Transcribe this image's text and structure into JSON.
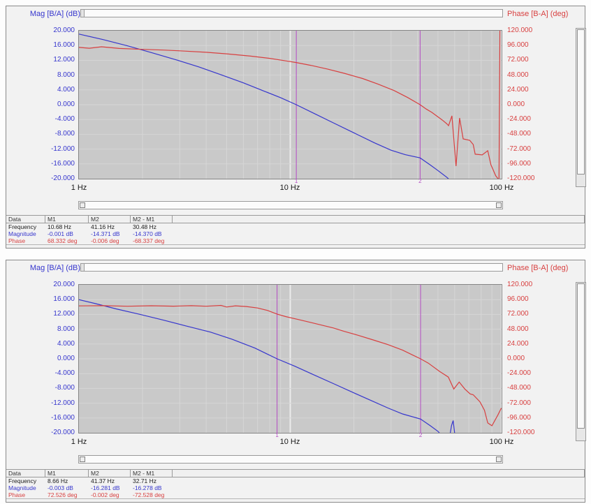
{
  "colors": {
    "mag": "#3636cd",
    "phase": "#d84040",
    "marker": "#b44ac4",
    "grid_minor": "#d6d6d6",
    "grid_major": "#ececec",
    "plot_bg": "#c9c9c9",
    "text": "#1a1a1a"
  },
  "panels": [
    {
      "mag_title": "Mag [B/A] (dB)",
      "phase_title": "Phase [B-A] (deg)",
      "left_ticks": [
        "20.000",
        "16.000",
        "12.000",
        "8.000",
        "4.000",
        "0.000",
        "-4.000",
        "-8.000",
        "-12.000",
        "-16.000",
        "-20.000"
      ],
      "right_ticks": [
        "120.000",
        "96.000",
        "72.000",
        "48.000",
        "24.000",
        "0.000",
        "-24.000",
        "-48.000",
        "-72.000",
        "-96.000",
        "-120.000"
      ],
      "x_ticks": [
        "1 Hz",
        "10 Hz",
        "100 Hz"
      ],
      "markers": [
        {
          "label": "1",
          "f": 10.68
        },
        {
          "label": "2",
          "f": 41.16
        }
      ],
      "table": {
        "headers": [
          "Data",
          "M1",
          "M2",
          "M2 - M1"
        ],
        "rows": [
          {
            "label": "Frequency",
            "color": "text",
            "values": [
              "10.68 Hz",
              "41.16 Hz",
              "30.48 Hz"
            ]
          },
          {
            "label": "Magnitude",
            "color": "mag",
            "values": [
              "-0.001 dB",
              "-14.371 dB",
              "-14.370 dB"
            ]
          },
          {
            "label": "Phase",
            "color": "phase",
            "values": [
              "68.332 deg",
              "-0.006 deg",
              "-68.337 deg"
            ]
          }
        ]
      }
    },
    {
      "mag_title": "Mag [B/A] (dB)",
      "phase_title": "Phase [B-A] (deg)",
      "left_ticks": [
        "20.000",
        "16.000",
        "12.000",
        "8.000",
        "4.000",
        "0.000",
        "-4.000",
        "-8.000",
        "-12.000",
        "-16.000",
        "-20.000"
      ],
      "right_ticks": [
        "120.000",
        "96.000",
        "72.000",
        "48.000",
        "24.000",
        "0.000",
        "-24.000",
        "-48.000",
        "-72.000",
        "-96.000",
        "-120.000"
      ],
      "x_ticks": [
        "1 Hz",
        "10 Hz",
        "100 Hz"
      ],
      "markers": [
        {
          "label": "1",
          "f": 8.66
        },
        {
          "label": "2",
          "f": 41.37
        }
      ],
      "table": {
        "headers": [
          "Data",
          "M1",
          "M2",
          "M2 - M1"
        ],
        "rows": [
          {
            "label": "Frequency",
            "color": "text",
            "values": [
              "8.66 Hz",
              "41.37 Hz",
              "32.71 Hz"
            ]
          },
          {
            "label": "Magnitude",
            "color": "mag",
            "values": [
              "-0.003 dB",
              "-16.281 dB",
              "-16.278 dB"
            ]
          },
          {
            "label": "Phase",
            "color": "phase",
            "values": [
              "72.526 deg",
              "-0.002 deg",
              "-72.528 deg"
            ]
          }
        ]
      }
    }
  ],
  "chart_data": [
    {
      "type": "line",
      "title": "Bode plot 1",
      "x_scale": "log",
      "x_range_hz": [
        1,
        100
      ],
      "mag_axis": {
        "label": "Mag [B/A] (dB)",
        "range": [
          -20,
          20
        ],
        "step": 4
      },
      "phase_axis": {
        "label": "Phase [B-A] (deg)",
        "range": [
          -120,
          120
        ],
        "step": 24
      },
      "grid": true,
      "markers_hz": [
        10.68,
        41.16
      ],
      "series": [
        {
          "name": "Magnitude",
          "axis": "mag",
          "points": [
            [
              1,
              19.1
            ],
            [
              1.3,
              17.6
            ],
            [
              1.7,
              15.9
            ],
            [
              2.2,
              14.1
            ],
            [
              2.9,
              12.1
            ],
            [
              3.7,
              10.2
            ],
            [
              4.7,
              8.1
            ],
            [
              6,
              5.9
            ],
            [
              7.5,
              3.7
            ],
            [
              9,
              1.9
            ],
            [
              10.68,
              0
            ],
            [
              13,
              -2.4
            ],
            [
              16,
              -4.9
            ],
            [
              20,
              -7.6
            ],
            [
              25,
              -10.3
            ],
            [
              30,
              -12.3
            ],
            [
              35,
              -13.5
            ],
            [
              41.16,
              -14.37
            ],
            [
              46,
              -16.3
            ],
            [
              50,
              -17.8
            ],
            [
              55,
              -19.6
            ],
            [
              59,
              -21.2
            ]
          ]
        },
        {
          "name": "Phase",
          "axis": "phase",
          "points": [
            [
              1,
              93
            ],
            [
              1.12,
              91.6
            ],
            [
              1.28,
              94
            ],
            [
              1.55,
              91.2
            ],
            [
              2,
              89.8
            ],
            [
              2.5,
              88.6
            ],
            [
              3,
              87.4
            ],
            [
              4,
              85
            ],
            [
              5,
              82.5
            ],
            [
              6.5,
              78.8
            ],
            [
              8,
              75.2
            ],
            [
              9.3,
              71.7
            ],
            [
              10.68,
              68.33
            ],
            [
              12.5,
              63.8
            ],
            [
              15,
              57.8
            ],
            [
              18,
              51
            ],
            [
              22,
              42.5
            ],
            [
              26,
              33.5
            ],
            [
              31,
              23
            ],
            [
              36,
              11.5
            ],
            [
              41.16,
              0
            ],
            [
              44,
              -7
            ],
            [
              46.8,
              -12.5
            ],
            [
              52.5,
              -25
            ],
            [
              54.9,
              -30.6
            ],
            [
              56.1,
              -34
            ],
            [
              58.2,
              -18
            ],
            [
              60.9,
              -99.6
            ],
            [
              63.3,
              -21.5
            ],
            [
              65.8,
              -55.5
            ],
            [
              70.7,
              -57.7
            ],
            [
              73.4,
              -64.5
            ],
            [
              75,
              -80.3
            ],
            [
              81,
              -81.4
            ],
            [
              86,
              -74.6
            ],
            [
              89,
              -97.2
            ],
            [
              93.8,
              -115.3
            ],
            [
              97.2,
              -122
            ],
            [
              98.2,
              122
            ]
          ]
        }
      ]
    },
    {
      "type": "line",
      "title": "Bode plot 2",
      "x_scale": "log",
      "x_range_hz": [
        1,
        100
      ],
      "mag_axis": {
        "label": "Mag [B/A] (dB)",
        "range": [
          -20,
          20
        ],
        "step": 4
      },
      "phase_axis": {
        "label": "Phase [B-A] (deg)",
        "range": [
          -120,
          120
        ],
        "step": 24
      },
      "grid": true,
      "markers_hz": [
        8.66,
        41.37
      ],
      "series": [
        {
          "name": "Magnitude",
          "axis": "mag",
          "points": [
            [
              1,
              16
            ],
            [
              1.2,
              14.9
            ],
            [
              1.5,
              13.5
            ],
            [
              1.95,
              12
            ],
            [
              2.5,
              10.5
            ],
            [
              3.2,
              8.9
            ],
            [
              4.2,
              7.2
            ],
            [
              5.3,
              5.3
            ],
            [
              6.8,
              2.9
            ],
            [
              8.66,
              0
            ],
            [
              10.5,
              -2
            ],
            [
              13,
              -4.4
            ],
            [
              16,
              -6.7
            ],
            [
              20,
              -9.2
            ],
            [
              24,
              -11.2
            ],
            [
              29,
              -13.3
            ],
            [
              34,
              -14.9
            ],
            [
              41.37,
              -16.28
            ],
            [
              46,
              -18.1
            ],
            [
              50,
              -19.6
            ],
            [
              53.5,
              -21.5
            ],
            [
              56.5,
              -21.8
            ],
            [
              58,
              -18
            ],
            [
              59,
              -16.7
            ],
            [
              60.5,
              -22
            ]
          ]
        },
        {
          "name": "Phase",
          "axis": "phase",
          "points": [
            [
              1,
              85.8
            ],
            [
              1.3,
              86.2
            ],
            [
              1.7,
              85.2
            ],
            [
              2.2,
              86
            ],
            [
              2.8,
              85.4
            ],
            [
              3.4,
              86.2
            ],
            [
              4,
              85.3
            ],
            [
              4.7,
              86.6
            ],
            [
              5,
              84
            ],
            [
              5.5,
              85.9
            ],
            [
              6.2,
              84.8
            ],
            [
              7,
              82.4
            ],
            [
              7.8,
              78.5
            ],
            [
              8.66,
              72.53
            ],
            [
              9.5,
              68.5
            ],
            [
              11,
              63.5
            ],
            [
              12.5,
              59
            ],
            [
              14.5,
              53.5
            ],
            [
              16,
              50
            ],
            [
              18,
              44.5
            ],
            [
              21,
              38
            ],
            [
              25,
              30
            ],
            [
              29,
              23
            ],
            [
              34,
              14
            ],
            [
              38,
              6
            ],
            [
              41.37,
              0
            ],
            [
              45,
              -7
            ],
            [
              51,
              -20.6
            ],
            [
              56,
              -29.7
            ],
            [
              59.4,
              -49
            ],
            [
              63,
              -37.7
            ],
            [
              67,
              -49
            ],
            [
              71,
              -57
            ],
            [
              73.4,
              -58.3
            ],
            [
              79,
              -69.7
            ],
            [
              83,
              -83.4
            ],
            [
              86,
              -104
            ],
            [
              90,
              -108.6
            ],
            [
              96,
              -91.4
            ],
            [
              99.7,
              -80
            ]
          ]
        }
      ]
    }
  ]
}
